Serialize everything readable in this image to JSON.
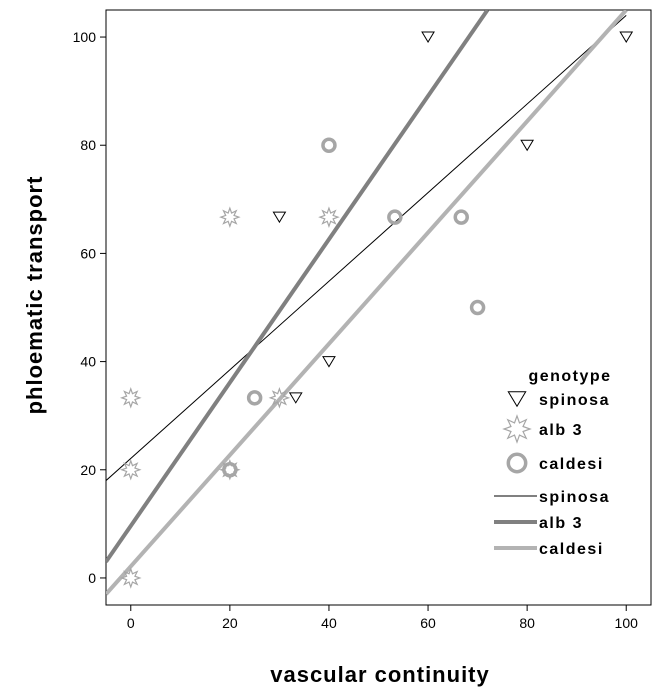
{
  "chart_data": {
    "type": "scatter",
    "xlabel": "vascular continuity",
    "ylabel": "phloematic transport",
    "xlim": [
      -5,
      105
    ],
    "ylim": [
      -5,
      105
    ],
    "x_ticks": [
      "0",
      "20",
      "40",
      "60",
      "80",
      "100"
    ],
    "y_ticks": [
      "0",
      "20",
      "40",
      "60",
      "80",
      "100"
    ],
    "grid": false,
    "legend_position": "bottom-right",
    "legend_title": "genotype",
    "series": [
      {
        "name": "spinosa",
        "marker": "triangle-down",
        "color": "#000000",
        "points": [
          [
            30,
            66.7
          ],
          [
            33.3,
            33.3
          ],
          [
            40,
            40
          ],
          [
            60,
            100
          ],
          [
            80,
            80
          ],
          [
            100,
            100
          ]
        ]
      },
      {
        "name": "alb 3",
        "marker": "star",
        "color": "#a6a6a6",
        "points": [
          [
            0,
            33.3
          ],
          [
            0,
            20
          ],
          [
            0,
            0
          ],
          [
            20,
            66.7
          ],
          [
            20,
            20
          ],
          [
            30,
            33.3
          ],
          [
            40,
            66.7
          ]
        ]
      },
      {
        "name": "caldesi",
        "marker": "circle",
        "color": "#a6a6a6",
        "points": [
          [
            25,
            33.3
          ],
          [
            40,
            80
          ],
          [
            53.3,
            66.7
          ],
          [
            66.7,
            66.7
          ],
          [
            70,
            50
          ],
          [
            20,
            20
          ]
        ]
      }
    ],
    "fit_lines": [
      {
        "name": "spinosa",
        "color": "#000000",
        "stroke_width": 1,
        "x0": -5,
        "y0": 18,
        "x1": 100,
        "y1": 104
      },
      {
        "name": "alb 3",
        "color": "#808080",
        "stroke_width": 4,
        "x0": -5,
        "y0": 3,
        "x1": 72,
        "y1": 105
      },
      {
        "name": "caldesi",
        "color": "#b3b3b3",
        "stroke_width": 4,
        "x0": -5,
        "y0": -3,
        "x1": 100,
        "y1": 105
      }
    ],
    "legend": [
      {
        "label": "spinosa",
        "kind": "triangle-down",
        "color": "#000000"
      },
      {
        "label": "alb 3",
        "kind": "star",
        "color": "#a6a6a6"
      },
      {
        "label": "caldesi",
        "kind": "circle",
        "color": "#a6a6a6"
      },
      {
        "label": "spinosa",
        "kind": "line",
        "color": "#000000",
        "stroke_width": 1
      },
      {
        "label": "alb 3",
        "kind": "line",
        "color": "#808080",
        "stroke_width": 4
      },
      {
        "label": "caldesi",
        "kind": "line",
        "color": "#b3b3b3",
        "stroke_width": 4
      }
    ]
  }
}
